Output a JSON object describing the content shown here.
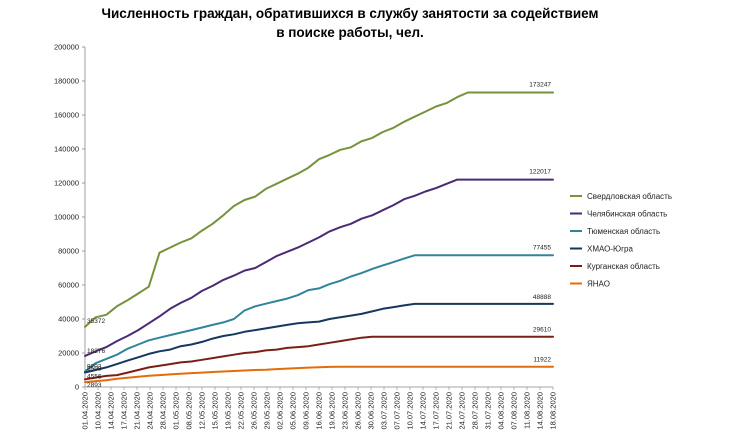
{
  "title": "Численность граждан, обратившихся в службу занятости за содействием в поиске работы, чел.",
  "chart_data": {
    "type": "line",
    "title": "Численность граждан, обратившихся в службу занятости за содействием в поиске работы, чел.",
    "xlabel": "",
    "ylabel": "",
    "ylim": [
      0,
      200000
    ],
    "yticks": [
      0,
      20000,
      40000,
      60000,
      80000,
      100000,
      120000,
      140000,
      160000,
      180000,
      200000
    ],
    "ytick_labels": [
      "0",
      "20000",
      "40000",
      "60000",
      "80000",
      "100000",
      "120000",
      "140000",
      "160000",
      "180000",
      "200000"
    ],
    "grid": false,
    "legend_position": "right",
    "x": [
      "01.04.2020",
      "03.04.2020",
      "06.04.2020",
      "08.04.2020",
      "10.04.2020",
      "13.04.2020",
      "15.04.2020",
      "17.04.2020",
      "20.04.2020",
      "22.04.2020",
      "24.04.2020",
      "27.04.2020",
      "29.04.2020",
      "01.05.2020",
      "05.05.2020",
      "08.05.2020",
      "12.05.2020",
      "15.05.2020",
      "19.05.2020",
      "22.05.2020",
      "26.05.2020",
      "29.05.2020",
      "02.06.2020",
      "05.06.2020",
      "09.06.2020",
      "12.06.2020",
      "16.06.2020",
      "19.06.2020",
      "23.06.2020",
      "26.06.2020",
      "30.06.2020",
      "03.07.2020",
      "07.07.2020",
      "10.07.2020",
      "14.07.2020",
      "17.07.2020",
      "21.07.2020",
      "24.07.2020",
      "28.07.2020",
      "31.07.2020",
      "04.08.2020",
      "07.08.2020",
      "11.08.2020",
      "14.08.2020",
      "18.08.2020"
    ],
    "xtick_labels": [
      "01.04.2020",
      "10.04.2020",
      "14.04.2020",
      "17.04.2020",
      "21.04.2020",
      "24.04.2020",
      "28.04.2020",
      "01.05.2020",
      "08.05.2020",
      "12.05.2020",
      "15.05.2020",
      "19.05.2020",
      "22.05.2020",
      "26.05.2020",
      "29.05.2020",
      "02.06.2020",
      "05.06.2020",
      "09.06.2020",
      "16.06.2020",
      "19.06.2020",
      "23.06.2020",
      "26.06.2020",
      "30.06.2020",
      "03.07.2020",
      "07.07.2020",
      "10.07.2020",
      "14.07.2020",
      "17.07.2020",
      "21.07.2020",
      "24.07.2020",
      "28.07.2020",
      "31.07.2020",
      "04.08.2020",
      "07.08.2020",
      "11.08.2020",
      "14.08.2020",
      "18.08.2020"
    ],
    "series": [
      {
        "name": "Свердловская область",
        "color": "#76923c",
        "first_label": "35372",
        "last_label": "173247",
        "values": [
          35372,
          41000,
          42500,
          47500,
          51000,
          55000,
          59000,
          79000,
          82000,
          85000,
          87500,
          92000,
          96000,
          101000,
          106500,
          110000,
          112000,
          116500,
          119500,
          122500,
          125500,
          129000,
          134000,
          136500,
          139500,
          141000,
          144500,
          146500,
          150000,
          152500,
          156000,
          159000,
          162000,
          165000,
          167000,
          170500,
          173247,
          173247,
          173247,
          173247,
          173247,
          173247,
          173247,
          173247,
          173247
        ]
      },
      {
        "name": "Челябинская область",
        "color": "#4b2a74",
        "first_label": "18276",
        "last_label": "122017",
        "values": [
          18276,
          21000,
          23500,
          27000,
          30000,
          33500,
          37500,
          41500,
          46000,
          49500,
          52500,
          56500,
          59500,
          63000,
          65500,
          68500,
          70000,
          73500,
          77000,
          79500,
          82000,
          85000,
          88000,
          91500,
          94000,
          96000,
          99000,
          101000,
          104000,
          107000,
          110500,
          112500,
          115000,
          117000,
          119500,
          122017,
          122017,
          122017,
          122017,
          122017,
          122017,
          122017,
          122017,
          122017,
          122017
        ]
      },
      {
        "name": "Тюменская область",
        "color": "#31849b",
        "first_label": "9203",
        "last_label": "77455",
        "values": [
          9203,
          14000,
          16500,
          19000,
          22500,
          25000,
          27500,
          29000,
          30500,
          32000,
          33500,
          35000,
          36500,
          38000,
          40000,
          45000,
          47500,
          49000,
          50500,
          52000,
          54000,
          57000,
          58000,
          60500,
          62500,
          65000,
          67000,
          69500,
          71500,
          73500,
          75500,
          77455,
          77455,
          77455,
          77455,
          77455,
          77455,
          77455,
          77455,
          77455,
          77455,
          77455,
          77455,
          77455,
          77455
        ]
      },
      {
        "name": "ХМАО-Югра",
        "color": "#17375e",
        "first_label": "8508",
        "last_label": "48888",
        "values": [
          8508,
          10000,
          11500,
          13500,
          15500,
          17500,
          19500,
          21000,
          22000,
          24000,
          25000,
          26500,
          28500,
          30000,
          31000,
          32500,
          33500,
          34500,
          35500,
          36500,
          37500,
          38000,
          38500,
          40000,
          41000,
          42000,
          43000,
          44500,
          46000,
          47000,
          48000,
          48888,
          48888,
          48888,
          48888,
          48888,
          48888,
          48888,
          48888,
          48888,
          48888,
          48888,
          48888,
          48888,
          48888
        ]
      },
      {
        "name": "Курганская область",
        "color": "#7b1f14",
        "first_label": "4556",
        "last_label": "29610",
        "values": [
          4556,
          5500,
          6500,
          7000,
          8500,
          10000,
          11500,
          12500,
          13500,
          14500,
          15000,
          16000,
          17000,
          18000,
          19000,
          20000,
          20500,
          21500,
          22000,
          23000,
          23500,
          24000,
          25000,
          26000,
          27000,
          28000,
          29000,
          29610,
          29610,
          29610,
          29610,
          29610,
          29610,
          29610,
          29610,
          29610,
          29610,
          29610,
          29610,
          29610,
          29610,
          29610,
          29610,
          29610,
          29610
        ]
      },
      {
        "name": "ЯНАО",
        "color": "#e46c0a",
        "first_label": "2893",
        "last_label": "11922",
        "values": [
          2893,
          3500,
          4000,
          4800,
          5400,
          6000,
          6600,
          7000,
          7400,
          7800,
          8200,
          8500,
          8800,
          9100,
          9400,
          9700,
          10000,
          10200,
          10500,
          10800,
          11100,
          11400,
          11600,
          11800,
          11922,
          11922,
          11922,
          11922,
          11922,
          11922,
          11922,
          11922,
          11922,
          11922,
          11922,
          11922,
          11922,
          11922,
          11922,
          11922,
          11922,
          11922,
          11922,
          11922,
          11922
        ]
      }
    ]
  }
}
